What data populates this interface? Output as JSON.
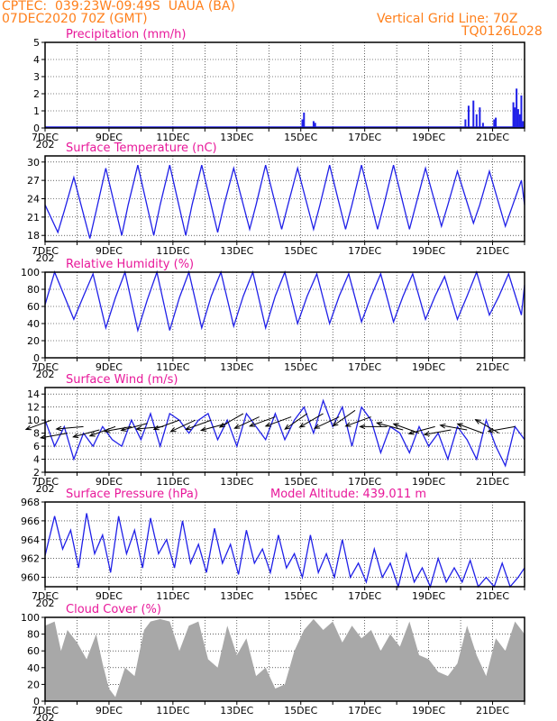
{
  "header": {
    "line1": "CPTEC:  039:23W-09:49S  UAUA (BA)",
    "line2": "07DEC2020 70Z (GMT)",
    "grid_label": "Vertical Grid Line: 70Z",
    "product_code": "TQ0126L028"
  },
  "colors": {
    "header": "#ff7f1a",
    "title": "#e8189a",
    "series": "#2020e8",
    "bars": "#a8a8a8",
    "arrows": "#000000",
    "grid": "#000000"
  },
  "x_axis": {
    "ticks": [
      "7DEC",
      "9DEC",
      "11DEC",
      "13DEC",
      "15DEC",
      "17DEC",
      "19DEC",
      "21DEC"
    ],
    "stub": "202",
    "day_range": [
      7,
      22
    ]
  },
  "chart_data": [
    {
      "type": "bar",
      "title": "Precipitation (mm/h)",
      "ylim": [
        0,
        5
      ],
      "yticks": [
        "0",
        "1",
        "2",
        "3",
        "4",
        "5"
      ],
      "x_days": [
        15.05,
        15.1,
        15.4,
        15.45,
        20.15,
        20.25,
        20.4,
        20.5,
        20.6,
        20.7,
        21.05,
        21.1,
        21.65,
        21.7,
        21.75,
        21.8,
        21.85,
        21.9,
        21.95
      ],
      "values": [
        0.5,
        0.9,
        0.4,
        0.3,
        0.5,
        1.3,
        1.6,
        0.8,
        1.2,
        0.3,
        0.5,
        0.6,
        1.5,
        1.2,
        2.3,
        1.1,
        0.8,
        1.9,
        0.4
      ]
    },
    {
      "type": "line",
      "title": "Surface Temperature (nC)",
      "ylim": [
        17,
        31
      ],
      "yticks": [
        "18",
        "21",
        "24",
        "27",
        "30"
      ],
      "x_days": [
        7,
        7.4,
        7.6,
        7.9,
        8.4,
        8.6,
        8.9,
        9.4,
        9.6,
        9.9,
        10.4,
        10.6,
        10.9,
        11.4,
        11.6,
        11.9,
        12.4,
        12.6,
        12.9,
        13.4,
        13.6,
        13.9,
        14.4,
        14.6,
        14.9,
        15.4,
        15.6,
        15.9,
        16.4,
        16.6,
        16.9,
        17.4,
        17.6,
        17.9,
        18.4,
        18.6,
        18.9,
        19.4,
        19.6,
        19.9,
        20.4,
        20.6,
        20.9,
        21.4,
        21.6,
        21.9,
        22.0
      ],
      "values": [
        23,
        18.5,
        22,
        27.5,
        17.5,
        22,
        29,
        18,
        23,
        29.5,
        18,
        23,
        29.5,
        18,
        23,
        29.5,
        18.5,
        23,
        29,
        19,
        23,
        29.5,
        19,
        23,
        29,
        19,
        23,
        29.5,
        19,
        23,
        29.5,
        19,
        23,
        29.5,
        19,
        23,
        29,
        19.5,
        23,
        28.5,
        20,
        23,
        28.5,
        19.5,
        22.5,
        27,
        23
      ]
    },
    {
      "type": "line",
      "title": "Relative Humidity (%)",
      "ylim": [
        0,
        100
      ],
      "yticks": [
        "0",
        "20",
        "40",
        "60",
        "80",
        "100"
      ],
      "x_days": [
        7,
        7.3,
        7.9,
        8.2,
        8.5,
        8.9,
        9.2,
        9.5,
        9.9,
        10.2,
        10.5,
        10.9,
        11.2,
        11.5,
        11.9,
        12.2,
        12.5,
        12.9,
        13.2,
        13.5,
        13.9,
        14.2,
        14.5,
        14.9,
        15.2,
        15.5,
        15.9,
        16.2,
        16.5,
        16.9,
        17.2,
        17.5,
        17.9,
        18.2,
        18.5,
        18.9,
        19.2,
        19.5,
        19.9,
        20.2,
        20.5,
        20.9,
        21.2,
        21.5,
        21.9,
        22.0
      ],
      "values": [
        62,
        100,
        45,
        72,
        98,
        35,
        70,
        100,
        32,
        68,
        100,
        32,
        70,
        100,
        35,
        72,
        100,
        37,
        72,
        100,
        35,
        72,
        100,
        40,
        72,
        98,
        40,
        72,
        98,
        42,
        72,
        98,
        42,
        72,
        98,
        45,
        72,
        95,
        45,
        72,
        100,
        50,
        72,
        98,
        50,
        85
      ]
    },
    {
      "type": "line",
      "title": "Surface Wind (m/s)",
      "ylim": [
        2,
        15
      ],
      "yticks": [
        "2",
        "4",
        "6",
        "8",
        "10",
        "12",
        "14"
      ],
      "x_days": [
        7,
        7.3,
        7.6,
        7.9,
        8.2,
        8.5,
        8.8,
        9.1,
        9.4,
        9.7,
        10.0,
        10.3,
        10.6,
        10.9,
        11.2,
        11.5,
        11.8,
        12.1,
        12.4,
        12.7,
        13.0,
        13.3,
        13.6,
        13.9,
        14.2,
        14.5,
        14.8,
        15.1,
        15.4,
        15.7,
        16.0,
        16.3,
        16.6,
        16.9,
        17.2,
        17.5,
        17.8,
        18.1,
        18.4,
        18.7,
        19.0,
        19.3,
        19.6,
        19.9,
        20.2,
        20.5,
        20.8,
        21.1,
        21.4,
        21.7,
        22.0
      ],
      "values": [
        10,
        6,
        9,
        4,
        8,
        6,
        9,
        7,
        6,
        10,
        7,
        11,
        6,
        11,
        10,
        8,
        10,
        11,
        7,
        10,
        6,
        11,
        9,
        7,
        11,
        7,
        10,
        12,
        8,
        13,
        9,
        12,
        6,
        12,
        10,
        5,
        9,
        8,
        5,
        9,
        6,
        8,
        4,
        9,
        7,
        4,
        10,
        6,
        3,
        9,
        7
      ],
      "arrows_x_days": [
        7.2,
        7.7,
        8.2,
        8.7,
        9.2,
        9.7,
        10.2,
        10.7,
        11.2,
        11.7,
        12.2,
        12.7,
        13.2,
        13.7,
        14.2,
        14.7,
        15.2,
        15.7,
        16.2,
        16.7,
        17.2,
        17.7,
        18.2,
        18.7,
        19.2,
        19.7,
        20.2,
        20.7,
        21.2,
        21.7
      ],
      "arrows_y": [
        10,
        8,
        9,
        8.5,
        9,
        9,
        9.5,
        9,
        10,
        10,
        10,
        9.5,
        11,
        10.5,
        10.5,
        10.5,
        11,
        11,
        10.5,
        11.5,
        10.5,
        9,
        8.5,
        8,
        9,
        8.5,
        8.5,
        8,
        8,
        9
      ],
      "arrows_angle_deg": [
        200,
        190,
        185,
        195,
        200,
        190,
        195,
        185,
        200,
        205,
        200,
        195,
        210,
        205,
        200,
        200,
        215,
        210,
        205,
        215,
        200,
        180,
        165,
        160,
        195,
        190,
        170,
        160,
        150,
        190
      ]
    },
    {
      "type": "line",
      "title": "Surface Pressure (hPa)",
      "annotation": "Model Altitude: 439.011  m",
      "ylim": [
        959,
        968
      ],
      "yticks": [
        "960",
        "962",
        "964",
        "966",
        "968"
      ],
      "x_days": [
        7,
        7.3,
        7.55,
        7.8,
        8.05,
        8.3,
        8.55,
        8.8,
        9.05,
        9.3,
        9.55,
        9.8,
        10.05,
        10.3,
        10.55,
        10.8,
        11.05,
        11.3,
        11.55,
        11.8,
        12.05,
        12.3,
        12.55,
        12.8,
        13.05,
        13.3,
        13.55,
        13.8,
        14.05,
        14.3,
        14.55,
        14.8,
        15.05,
        15.3,
        15.55,
        15.8,
        16.05,
        16.3,
        16.55,
        16.8,
        17.05,
        17.3,
        17.55,
        17.8,
        18.05,
        18.3,
        18.55,
        18.8,
        19.05,
        19.3,
        19.55,
        19.8,
        20.05,
        20.3,
        20.55,
        20.8,
        21.05,
        21.3,
        21.55,
        21.8,
        22.0
      ],
      "values": [
        962.3,
        966.5,
        963,
        965,
        961,
        966.8,
        962.5,
        964.5,
        960.5,
        966.5,
        962.5,
        965,
        961,
        966.3,
        962.5,
        964,
        961,
        966,
        961.5,
        963.5,
        960.5,
        965.2,
        961.5,
        963.5,
        960.3,
        965,
        961.5,
        963,
        960.5,
        964.5,
        961,
        962.5,
        960,
        964.5,
        960.5,
        962.5,
        960,
        964,
        960,
        961.5,
        959.5,
        963,
        960,
        961.5,
        959,
        962.5,
        959.5,
        961,
        959,
        962,
        959.5,
        961,
        959.5,
        961.8,
        959,
        960,
        959,
        961.5,
        959,
        960,
        961
      ]
    },
    {
      "type": "area",
      "title": "Cloud Cover (%)",
      "ylim": [
        0,
        100
      ],
      "yticks": [
        "0",
        "20",
        "40",
        "60",
        "80",
        "100"
      ],
      "x_days": [
        7,
        7.3,
        7.5,
        7.7,
        8.0,
        8.3,
        8.6,
        8.8,
        9.0,
        9.2,
        9.5,
        9.8,
        10.1,
        10.3,
        10.6,
        10.9,
        11.2,
        11.5,
        11.8,
        12.1,
        12.4,
        12.7,
        13.0,
        13.3,
        13.6,
        13.9,
        14.2,
        14.5,
        14.8,
        15.1,
        15.4,
        15.7,
        16.0,
        16.3,
        16.6,
        16.9,
        17.2,
        17.5,
        17.8,
        18.1,
        18.4,
        18.7,
        19.0,
        19.3,
        19.6,
        19.9,
        20.2,
        20.5,
        20.8,
        21.1,
        21.4,
        21.7,
        22.0
      ],
      "values": [
        90,
        95,
        60,
        85,
        70,
        50,
        80,
        45,
        15,
        5,
        40,
        30,
        85,
        95,
        98,
        95,
        60,
        90,
        95,
        50,
        40,
        90,
        55,
        75,
        30,
        40,
        15,
        20,
        60,
        85,
        98,
        85,
        95,
        70,
        90,
        75,
        85,
        60,
        80,
        65,
        95,
        55,
        50,
        35,
        30,
        45,
        90,
        55,
        30,
        75,
        60,
        95,
        80
      ]
    }
  ]
}
